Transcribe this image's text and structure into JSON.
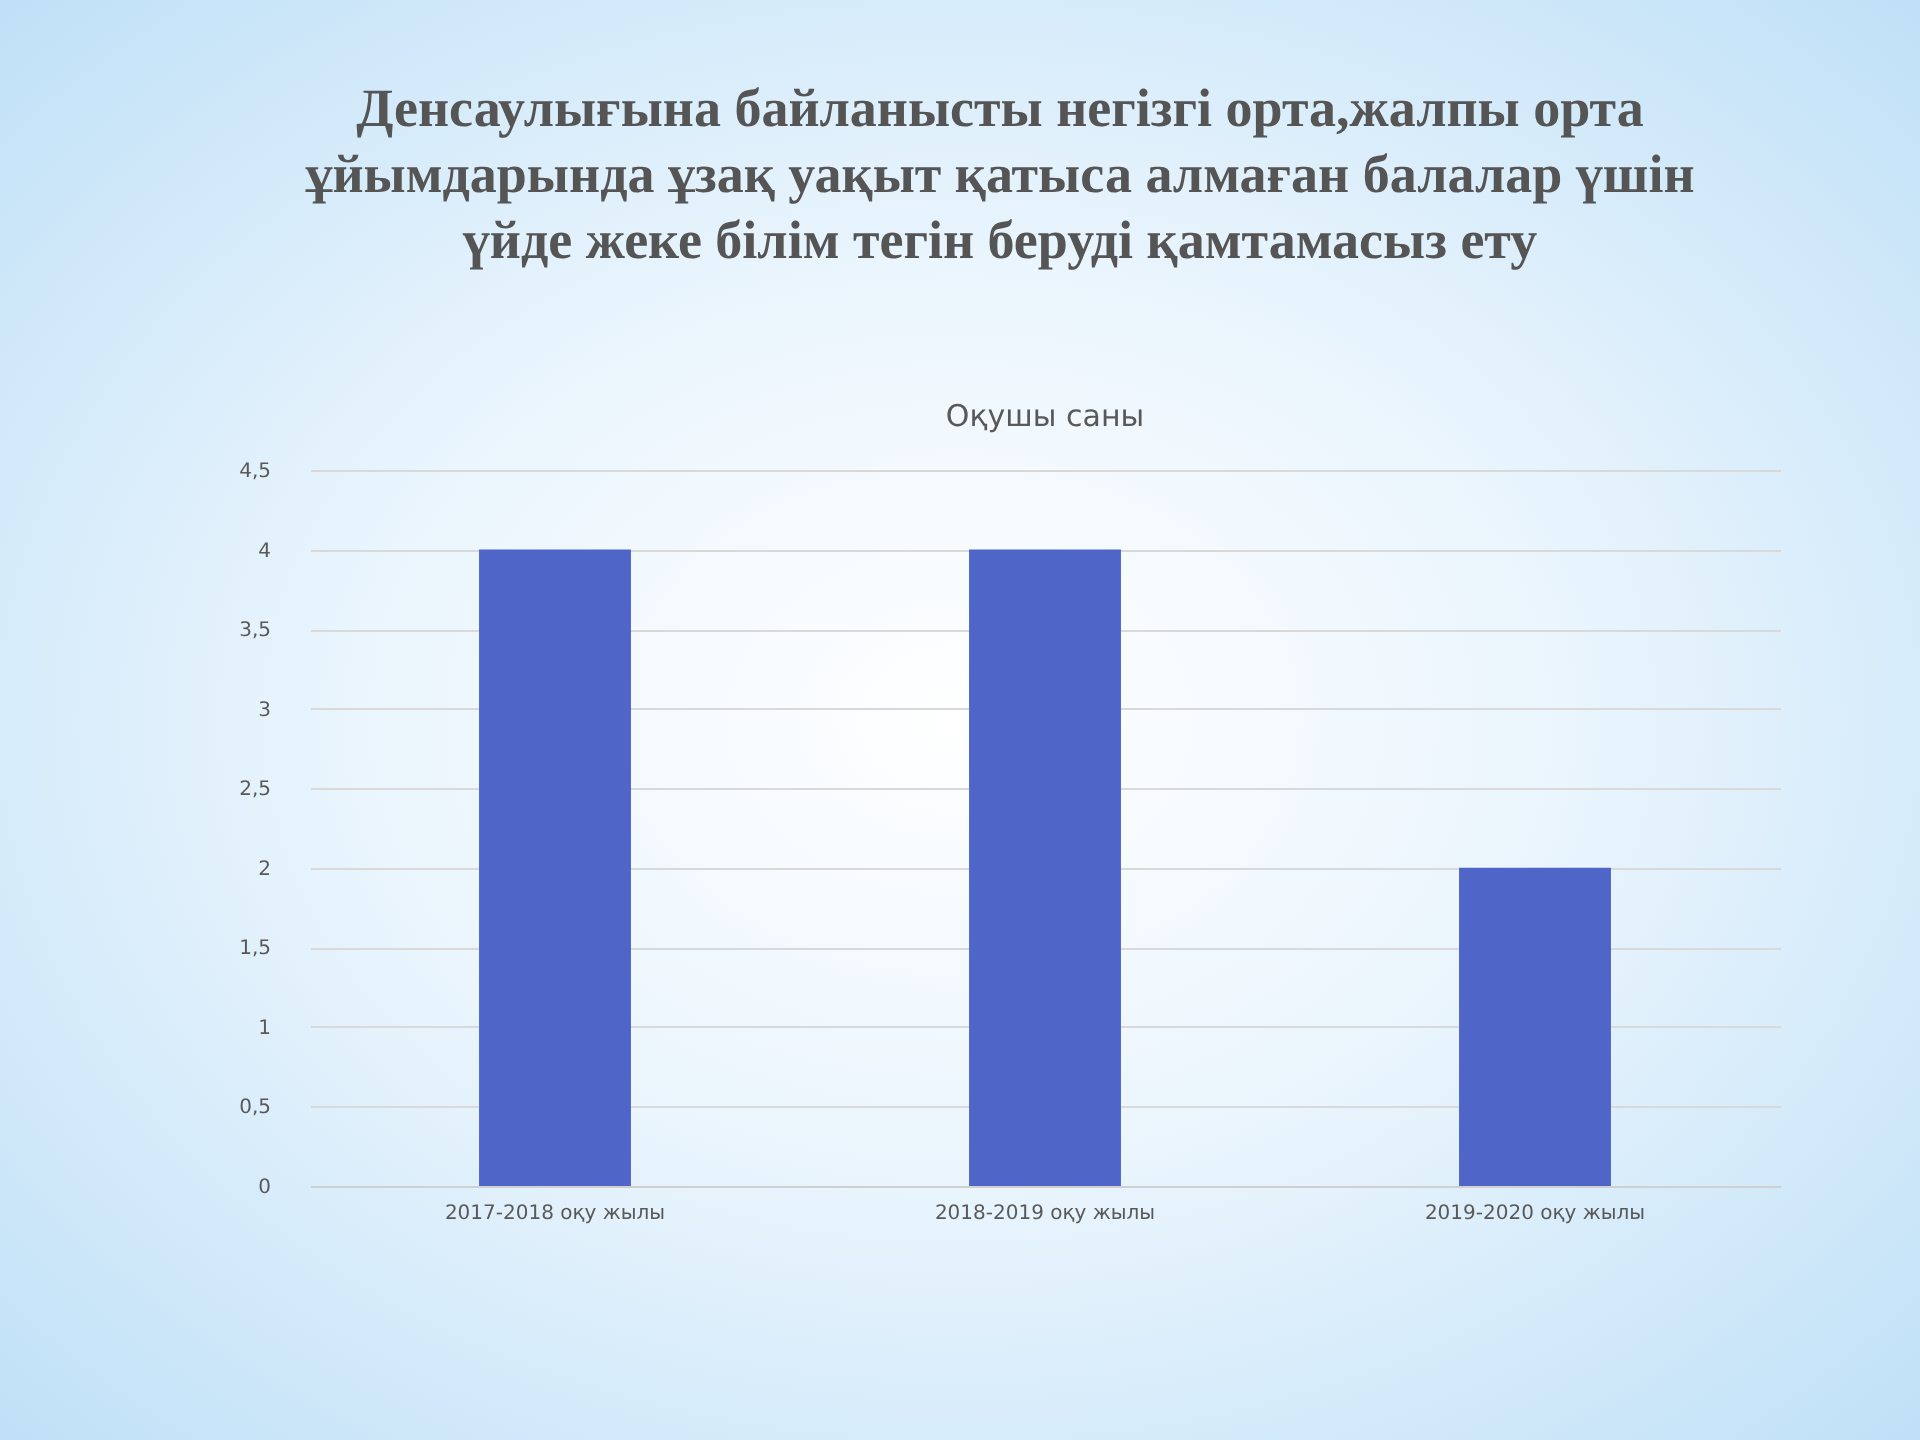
{
  "chart_data": {
    "type": "bar",
    "title": "Денсаулығына байланысты негізгі орта,жалпы орта ұйымдарында ұзақ уақыт қатыса алмаған балалар үшін үйде жеке білім  тегін беруді  қамтамасыз ету",
    "subtitle": "Оқушы саны",
    "categories": [
      "2017-2018  оқу жылы",
      "2018-2019  оқу жылы",
      "2019-2020  оқу жылы"
    ],
    "values": [
      4,
      4,
      2
    ],
    "color": "#4f65c8",
    "ylim": [
      0,
      4.5
    ],
    "yticks": [
      0,
      {
        "value": 0.5,
        "label": "0,5"
      },
      1,
      {
        "value": 1.5,
        "label": "1,5"
      },
      2,
      {
        "value": 2.5,
        "label": "2,5"
      },
      3,
      {
        "value": 3.5,
        "label": "3,5"
      },
      4,
      {
        "value": 4.5,
        "label": "4,5"
      }
    ],
    "grid": "y"
  }
}
